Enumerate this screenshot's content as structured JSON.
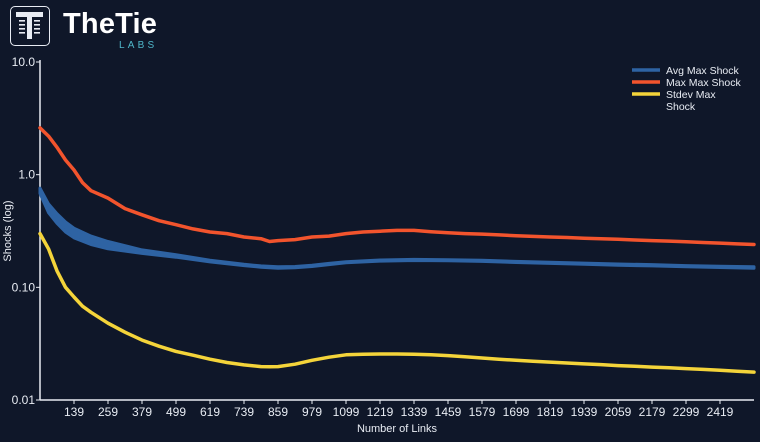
{
  "brand": {
    "name": "TheTie",
    "sub": "LABS"
  },
  "chart_data": {
    "type": "line",
    "title": "",
    "xlabel": "Number of Links",
    "ylabel": "Shocks (log)",
    "yscale": "log",
    "ylim": [
      0.01,
      10.0
    ],
    "xlim": [
      19,
      2539
    ],
    "ytick_labels": [
      "10.0",
      "1.0",
      "0.10",
      "0.01"
    ],
    "ytick_values": [
      10.0,
      1.0,
      0.1,
      0.01
    ],
    "xtick_values": [
      139,
      259,
      379,
      499,
      619,
      739,
      859,
      979,
      1099,
      1219,
      1339,
      1459,
      1579,
      1699,
      1819,
      1939,
      2059,
      2179,
      2299,
      2419
    ],
    "legend_position": "top-right",
    "grid": false,
    "series": [
      {
        "name": "Avg Max Shock",
        "color": "#2e63a3",
        "band": true,
        "x": [
          19,
          49,
          79,
          109,
          139,
          199,
          259,
          379,
          499,
          619,
          739,
          799,
          859,
          919,
          979,
          1039,
          1099,
          1219,
          1339,
          1459,
          1579,
          1699,
          1819,
          1939,
          2059,
          2179,
          2299,
          2419,
          2539
        ],
        "lower": [
          0.68,
          0.46,
          0.37,
          0.31,
          0.275,
          0.24,
          0.22,
          0.2,
          0.185,
          0.168,
          0.156,
          0.151,
          0.148,
          0.149,
          0.153,
          0.159,
          0.165,
          0.171,
          0.173,
          0.172,
          0.17,
          0.166,
          0.163,
          0.16,
          0.157,
          0.155,
          0.152,
          0.15,
          0.148
        ],
        "upper": [
          0.76,
          0.55,
          0.45,
          0.38,
          0.335,
          0.285,
          0.255,
          0.215,
          0.195,
          0.174,
          0.16,
          0.155,
          0.152,
          0.153,
          0.157,
          0.163,
          0.169,
          0.175,
          0.177,
          0.176,
          0.174,
          0.17,
          0.167,
          0.164,
          0.161,
          0.159,
          0.156,
          0.154,
          0.152
        ]
      },
      {
        "name": "Max Max Shock",
        "color": "#f2542d",
        "x": [
          19,
          49,
          79,
          109,
          139,
          169,
          199,
          259,
          319,
          379,
          439,
          499,
          559,
          619,
          679,
          739,
          799,
          829,
          859,
          919,
          979,
          1039,
          1099,
          1159,
          1219,
          1279,
          1339,
          1399,
          1459,
          1519,
          1579,
          1639,
          1699,
          1759,
          1819,
          1879,
          1939,
          1999,
          2059,
          2119,
          2179,
          2239,
          2299,
          2359,
          2419,
          2479,
          2539
        ],
        "y": [
          2.6,
          2.2,
          1.75,
          1.35,
          1.1,
          0.85,
          0.72,
          0.62,
          0.5,
          0.44,
          0.39,
          0.36,
          0.33,
          0.31,
          0.3,
          0.28,
          0.27,
          0.255,
          0.26,
          0.265,
          0.28,
          0.285,
          0.3,
          0.31,
          0.315,
          0.32,
          0.32,
          0.312,
          0.305,
          0.3,
          0.297,
          0.292,
          0.287,
          0.283,
          0.28,
          0.277,
          0.273,
          0.27,
          0.267,
          0.263,
          0.26,
          0.257,
          0.254,
          0.25,
          0.247,
          0.243,
          0.24
        ]
      },
      {
        "name": "Stdev Max Shock",
        "color": "#f4d43a",
        "x": [
          19,
          49,
          79,
          109,
          139,
          169,
          199,
          259,
          319,
          379,
          439,
          499,
          559,
          619,
          679,
          739,
          799,
          829,
          859,
          919,
          979,
          1039,
          1099,
          1159,
          1219,
          1279,
          1339,
          1399,
          1459,
          1519,
          1579,
          1639,
          1699,
          1759,
          1819,
          1879,
          1939,
          1999,
          2059,
          2119,
          2179,
          2239,
          2299,
          2359,
          2419,
          2479,
          2539
        ],
        "y": [
          0.3,
          0.22,
          0.14,
          0.1,
          0.082,
          0.068,
          0.06,
          0.048,
          0.04,
          0.034,
          0.03,
          0.027,
          0.025,
          0.023,
          0.0215,
          0.0205,
          0.0198,
          0.0197,
          0.0198,
          0.0208,
          0.0225,
          0.024,
          0.0252,
          0.0255,
          0.0256,
          0.0256,
          0.0255,
          0.0252,
          0.0248,
          0.0242,
          0.0236,
          0.023,
          0.0225,
          0.0221,
          0.0217,
          0.0213,
          0.0209,
          0.0206,
          0.0202,
          0.0199,
          0.0196,
          0.0193,
          0.019,
          0.0187,
          0.0184,
          0.018,
          0.0177
        ]
      }
    ]
  }
}
